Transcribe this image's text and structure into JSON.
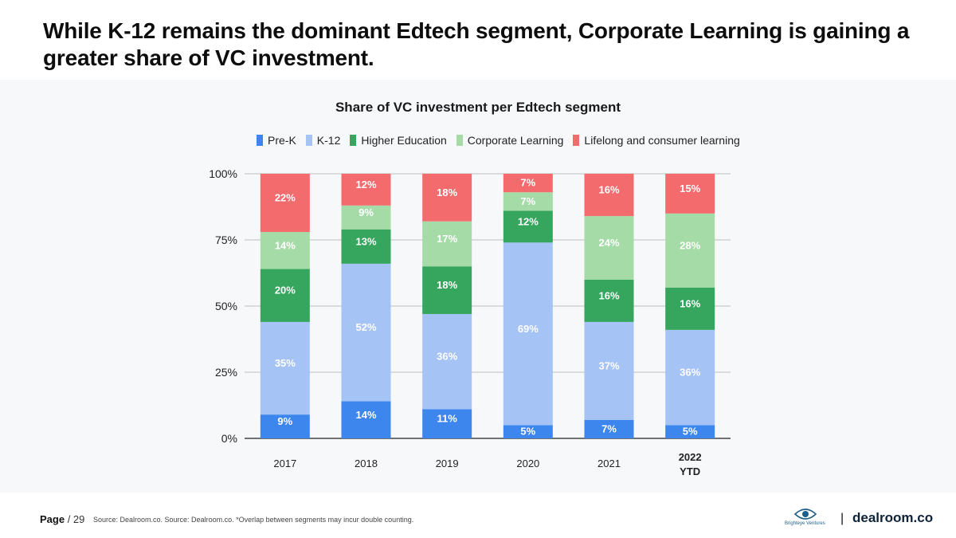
{
  "headline": "While K-12 remains the dominant Edtech segment, Corporate Learning is gaining a greater share of VC investment.",
  "colors": {
    "Pre-K": "#3d86ee",
    "K-12": "#a6c3f5",
    "Higher Education": "#36a55e",
    "Corporate Learning": "#a5dba7",
    "Lifelong and consumer learning": "#f46b6e"
  },
  "chart_data": {
    "type": "bar",
    "stacked": true,
    "title": "Share of VC investment per Edtech segment",
    "categories": [
      "2017",
      "2018",
      "2019",
      "2020",
      "2021",
      "2022 YTD"
    ],
    "category_lines": [
      [
        "2017"
      ],
      [
        "2018"
      ],
      [
        "2019"
      ],
      [
        "2020"
      ],
      [
        "2021"
      ],
      [
        "2022",
        "YTD"
      ]
    ],
    "series": [
      {
        "name": "Pre-K",
        "values": [
          9,
          14,
          11,
          5,
          7,
          5
        ],
        "labels": [
          "9%",
          "14%",
          "11%",
          "5%",
          "7%",
          "5%"
        ]
      },
      {
        "name": "K-12",
        "values": [
          35,
          52,
          36,
          69,
          37,
          36
        ],
        "labels": [
          "35%",
          "52%",
          "36%",
          "69%",
          "37%",
          "36%"
        ]
      },
      {
        "name": "Higher Education",
        "values": [
          20,
          13,
          18,
          12,
          16,
          16
        ],
        "labels": [
          "20%",
          "13%",
          "18%",
          "12%",
          "16%",
          "16%"
        ]
      },
      {
        "name": "Corporate Learning",
        "values": [
          14,
          9,
          17,
          7,
          24,
          28
        ],
        "labels": [
          "14%",
          "9%",
          "17%",
          "7%",
          "24%",
          "28%"
        ]
      },
      {
        "name": "Lifelong and consumer learning",
        "values": [
          22,
          12,
          18,
          7,
          16,
          15
        ],
        "labels": [
          "22%",
          "12%",
          "18%",
          "7%",
          "16%",
          "15%"
        ]
      }
    ],
    "ylim": [
      0,
      100
    ],
    "yticks": [
      0,
      25,
      50,
      75,
      100
    ],
    "ytick_labels": [
      "0%",
      "25%",
      "50%",
      "75%",
      "100%"
    ],
    "legend": "top-center",
    "grid": true
  },
  "footer": {
    "page_label": "Page",
    "page_number": "/ 29",
    "source": "Source: Dealroom.co. Source: Dealroom.co. *Overlap between segments may incur double counting."
  },
  "branding": {
    "partner": "Brighteye Ventures",
    "divider": "|",
    "logo": "dealroom.co"
  }
}
